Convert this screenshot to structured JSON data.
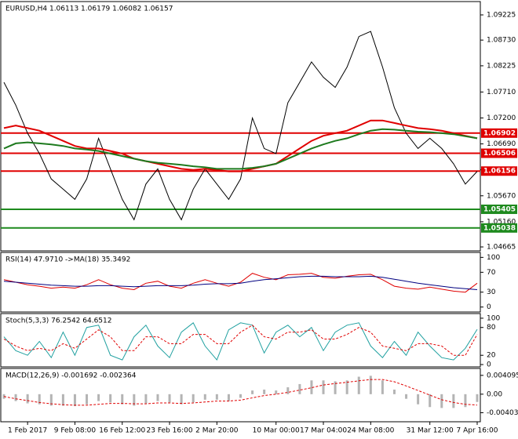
{
  "chart_data": [
    {
      "type": "line",
      "title": "EURUSD,H4  1.06113 1.06179 1.06082 1.06157",
      "categories": [
        null,
        null,
        "1 Feb 2017",
        null,
        null,
        null,
        "9 Feb 08:00",
        null,
        null,
        null,
        "16 Feb 12:00",
        null,
        null,
        null,
        "23 Feb 16:00",
        null,
        null,
        null,
        "2 Mar 20:00",
        null,
        null,
        null,
        null,
        "10 Mar 00:00",
        null,
        null,
        null,
        "17 Mar 04:00",
        null,
        null,
        null,
        "24 Mar 08:00",
        null,
        null,
        null,
        null,
        "31 Mar 12:00",
        null,
        null,
        null,
        "7 Apr 16:00"
      ],
      "ylim": [
        1.04588,
        1.09487
      ],
      "yticks": [
        1.09225,
        {
          "value": 1.0873,
          "label": "1.08730"
        },
        1.08225,
        {
          "value": 1.0771,
          "label": "1.07710"
        },
        {
          "value": 1.072,
          "label": "1.07200"
        },
        {
          "value": 1.0669,
          "label": "1.06690"
        },
        {
          "value": 1.0618,
          "label": "1.06180"
        },
        {
          "value": 1.0567,
          "label": "1.05670"
        },
        {
          "value": 1.0516,
          "label": "1.05160"
        },
        1.04665
      ],
      "levels": [
        {
          "value": 1.06902,
          "color": "#e00000"
        },
        {
          "value": 1.06506,
          "color": "#e00000"
        },
        {
          "value": 1.06156,
          "color": "#e00000"
        },
        {
          "value": 1.05405,
          "color": "#1e8a1e"
        },
        {
          "value": 1.05038,
          "color": "#1e8a1e"
        }
      ],
      "series": [
        {
          "color": "#000000",
          "values": [
            1.079,
            1.0745,
            1.069,
            1.065,
            1.06,
            1.058,
            1.056,
            1.06,
            1.068,
            1.062,
            1.056,
            1.052,
            1.059,
            1.062,
            1.056,
            1.052,
            1.058,
            1.062,
            1.059,
            1.056,
            1.06,
            1.072,
            1.066,
            1.065,
            1.075,
            1.079,
            1.083,
            1.08,
            1.078,
            1.082,
            1.088,
            1.089,
            1.082,
            1.074,
            1.069,
            1.066,
            1.068,
            1.066,
            1.063,
            1.059,
            1.0615
          ]
        },
        {
          "color": "#e00000",
          "values": [
            1.07,
            1.0705,
            1.07,
            1.0695,
            1.0685,
            1.0675,
            1.0665,
            1.066,
            1.066,
            1.0655,
            1.065,
            1.064,
            1.0635,
            1.063,
            1.0625,
            1.062,
            1.0618,
            1.062,
            1.0618,
            1.0615,
            1.0615,
            1.062,
            1.0625,
            1.063,
            1.0645,
            1.066,
            1.0675,
            1.0685,
            1.069,
            1.0695,
            1.0705,
            1.0715,
            1.0715,
            1.071,
            1.0705,
            1.07,
            1.0698,
            1.0695,
            1.069,
            1.0685,
            1.068
          ]
        },
        {
          "color": "#1e7a1e",
          "values": [
            1.066,
            1.067,
            1.0672,
            1.067,
            1.0668,
            1.0665,
            1.066,
            1.0658,
            1.0655,
            1.065,
            1.0645,
            1.064,
            1.0635,
            1.0632,
            1.063,
            1.0628,
            1.0625,
            1.0623,
            1.062,
            1.062,
            1.062,
            1.0622,
            1.0625,
            1.063,
            1.064,
            1.065,
            1.066,
            1.0668,
            1.0675,
            1.068,
            1.0688,
            1.0695,
            1.0698,
            1.0697,
            1.0695,
            1.0693,
            1.0692,
            1.069,
            1.0688,
            1.0684,
            1.068
          ]
        }
      ]
    },
    {
      "type": "line",
      "title": "RSI(14) 47.9710  ->MA(18) 35.3492",
      "ylim": [
        -10,
        110
      ],
      "yticks": [
        100,
        70,
        30,
        0
      ],
      "series": [
        {
          "color": "#e00000",
          "values": [
            55,
            50,
            45,
            42,
            38,
            40,
            38,
            45,
            55,
            45,
            38,
            35,
            48,
            52,
            42,
            38,
            48,
            55,
            48,
            42,
            50,
            68,
            60,
            55,
            65,
            66,
            68,
            60,
            58,
            62,
            65,
            66,
            55,
            42,
            38,
            36,
            40,
            36,
            32,
            30,
            48
          ]
        },
        {
          "color": "#000080",
          "values": [
            52,
            50,
            48,
            46,
            44,
            43,
            42,
            42,
            43,
            43,
            42,
            41,
            42,
            43,
            43,
            43,
            44,
            46,
            47,
            47,
            48,
            52,
            55,
            57,
            59,
            61,
            62,
            62,
            61,
            61,
            61,
            62,
            60,
            56,
            52,
            48,
            45,
            42,
            39,
            37,
            35
          ]
        }
      ]
    },
    {
      "type": "line",
      "title": "Stoch(5,3,3) 76.2542 64.6512",
      "ylim": [
        -5,
        110
      ],
      "yticks": [
        100,
        80,
        20,
        0
      ],
      "series": [
        {
          "color": "#20a0a0",
          "values": [
            60,
            30,
            20,
            50,
            15,
            70,
            20,
            80,
            85,
            20,
            10,
            60,
            85,
            40,
            15,
            70,
            90,
            40,
            10,
            75,
            90,
            85,
            25,
            70,
            85,
            60,
            80,
            30,
            70,
            85,
            90,
            40,
            15,
            50,
            20,
            70,
            40,
            15,
            10,
            35,
            76
          ]
        },
        {
          "color": "#e00000",
          "dashed": true,
          "values": [
            55,
            40,
            30,
            35,
            30,
            45,
            35,
            55,
            75,
            60,
            30,
            30,
            60,
            60,
            45,
            45,
            65,
            65,
            45,
            45,
            70,
            85,
            60,
            55,
            70,
            70,
            75,
            55,
            55,
            65,
            80,
            70,
            40,
            35,
            30,
            45,
            45,
            40,
            20,
            20,
            65
          ]
        }
      ]
    },
    {
      "type": "bar",
      "title": "MACD(12,26,9) -0.001692 -0.002364",
      "ylim": [
        -0.006,
        0.0056
      ],
      "yticks": [
        0.004095,
        {
          "value": 0,
          "label": "0.00"
        },
        -0.004033
      ],
      "series": [
        {
          "type": "bar",
          "color": "#b4b4b4",
          "values": [
            -0.001,
            -0.0015,
            -0.002,
            -0.0022,
            -0.0025,
            -0.0025,
            -0.0026,
            -0.0022,
            -0.0015,
            -0.0018,
            -0.0022,
            -0.0025,
            -0.002,
            -0.0015,
            -0.0018,
            -0.0022,
            -0.0018,
            -0.0012,
            -0.0012,
            -0.0015,
            -0.0008,
            0.0008,
            0.001,
            0.0008,
            0.0015,
            0.0022,
            0.003,
            0.003,
            0.0028,
            0.003,
            0.0038,
            0.004,
            0.003,
            0.001,
            -0.001,
            -0.0022,
            -0.0028,
            -0.003,
            -0.003,
            -0.0028,
            -0.001692
          ]
        },
        {
          "type": "line",
          "color": "#e00000",
          "dashed": true,
          "values": [
            -0.0005,
            -0.001,
            -0.0014,
            -0.0018,
            -0.0021,
            -0.0023,
            -0.0024,
            -0.0024,
            -0.0022,
            -0.002,
            -0.002,
            -0.0021,
            -0.0021,
            -0.0019,
            -0.0019,
            -0.002,
            -0.0019,
            -0.0017,
            -0.0015,
            -0.0015,
            -0.0013,
            -0.0008,
            -0.0003,
            0.0,
            0.0004,
            0.0009,
            0.0014,
            0.002,
            0.0023,
            0.0026,
            0.0029,
            0.0032,
            0.0032,
            0.0027,
            0.0018,
            0.0008,
            -0.0002,
            -0.0012,
            -0.0018,
            -0.0022,
            -0.002364
          ]
        }
      ]
    }
  ]
}
